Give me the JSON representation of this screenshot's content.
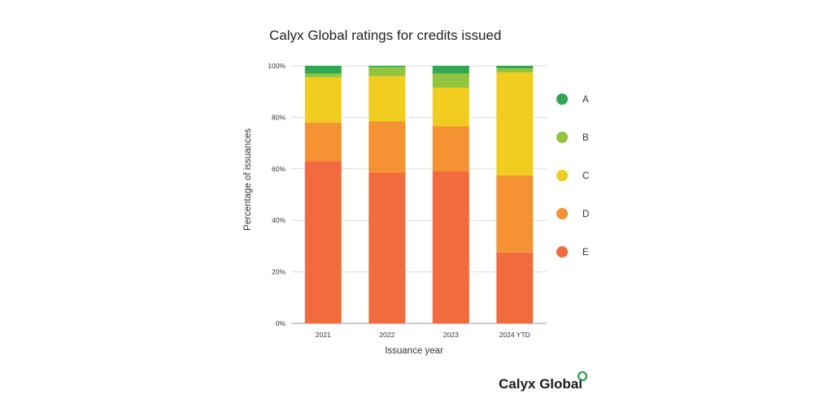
{
  "chart_data": {
    "type": "bar",
    "stacked": true,
    "title": "Calyx Global ratings for credits issued",
    "xlabel": "Issuance year",
    "ylabel": "Percentage of issuances",
    "categories": [
      "2021",
      "2022",
      "2023",
      "2024 YTD"
    ],
    "ylim": [
      0,
      100
    ],
    "yticks": [
      {
        "value": 0,
        "label": "0%"
      },
      {
        "value": 20,
        "label": "20%"
      },
      {
        "value": 40,
        "label": "40%"
      },
      {
        "value": 60,
        "label": "60%"
      },
      {
        "value": 80,
        "label": "80%"
      },
      {
        "value": 100,
        "label": "100%"
      }
    ],
    "grid": true,
    "legend_position": "right",
    "series": [
      {
        "name": "E",
        "color": "#f26b3f",
        "values": [
          63.0,
          58.5,
          59.0,
          27.5
        ]
      },
      {
        "name": "D",
        "color": "#f59233",
        "values": [
          15.0,
          20.0,
          17.5,
          30.0
        ]
      },
      {
        "name": "C",
        "color": "#f0cd1e",
        "values": [
          17.5,
          17.5,
          15.0,
          40.0
        ]
      },
      {
        "name": "B",
        "color": "#92c43f",
        "values": [
          1.5,
          3.5,
          5.5,
          1.5
        ]
      },
      {
        "name": "A",
        "color": "#33a852",
        "values": [
          3.0,
          0.5,
          3.0,
          1.0
        ]
      }
    ]
  },
  "brand": {
    "name": "Calyx Global",
    "logo_color": "#2e9b47"
  }
}
